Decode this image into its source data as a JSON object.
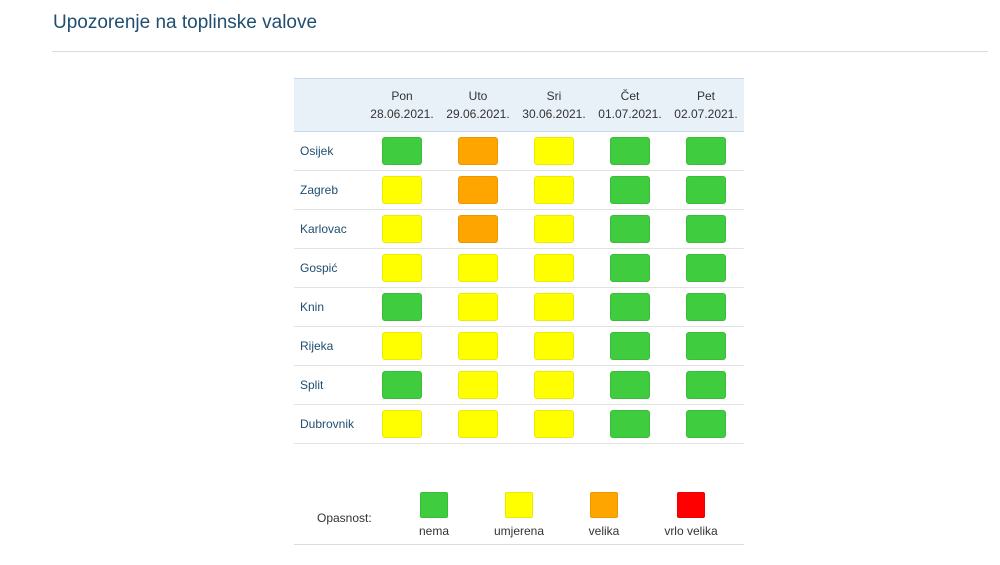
{
  "page": {
    "title": "Upozorenje na toplinske valove"
  },
  "colors": {
    "nema": "#3fcc3f",
    "umjerena": "#ffff00",
    "velika": "#ffa500",
    "vrlo_velika": "#ff0000",
    "title": "#1f4e70",
    "header_bg": "#e8f0f8"
  },
  "days": [
    {
      "name": "Pon",
      "date": "28.06.2021."
    },
    {
      "name": "Uto",
      "date": "29.06.2021."
    },
    {
      "name": "Sri",
      "date": "30.06.2021."
    },
    {
      "name": "Čet",
      "date": "01.07.2021."
    },
    {
      "name": "Pet",
      "date": "02.07.2021."
    }
  ],
  "cities": [
    {
      "name": "Osijek",
      "levels": [
        "nema",
        "velika",
        "umjerena",
        "nema",
        "nema"
      ]
    },
    {
      "name": "Zagreb",
      "levels": [
        "umjerena",
        "velika",
        "umjerena",
        "nema",
        "nema"
      ]
    },
    {
      "name": "Karlovac",
      "levels": [
        "umjerena",
        "velika",
        "umjerena",
        "nema",
        "nema"
      ]
    },
    {
      "name": "Gospić",
      "levels": [
        "umjerena",
        "umjerena",
        "umjerena",
        "nema",
        "nema"
      ]
    },
    {
      "name": "Knin",
      "levels": [
        "nema",
        "umjerena",
        "umjerena",
        "nema",
        "nema"
      ]
    },
    {
      "name": "Rijeka",
      "levels": [
        "umjerena",
        "umjerena",
        "umjerena",
        "nema",
        "nema"
      ]
    },
    {
      "name": "Split",
      "levels": [
        "nema",
        "umjerena",
        "umjerena",
        "nema",
        "nema"
      ]
    },
    {
      "name": "Dubrovnik",
      "levels": [
        "umjerena",
        "umjerena",
        "umjerena",
        "nema",
        "nema"
      ]
    }
  ],
  "legend": {
    "label": "Opasnost:",
    "items": [
      {
        "key": "nema",
        "label": "nema"
      },
      {
        "key": "umjerena",
        "label": "umjerena"
      },
      {
        "key": "velika",
        "label": "velika"
      },
      {
        "key": "vrlo_velika",
        "label": "vrlo velika"
      }
    ]
  }
}
